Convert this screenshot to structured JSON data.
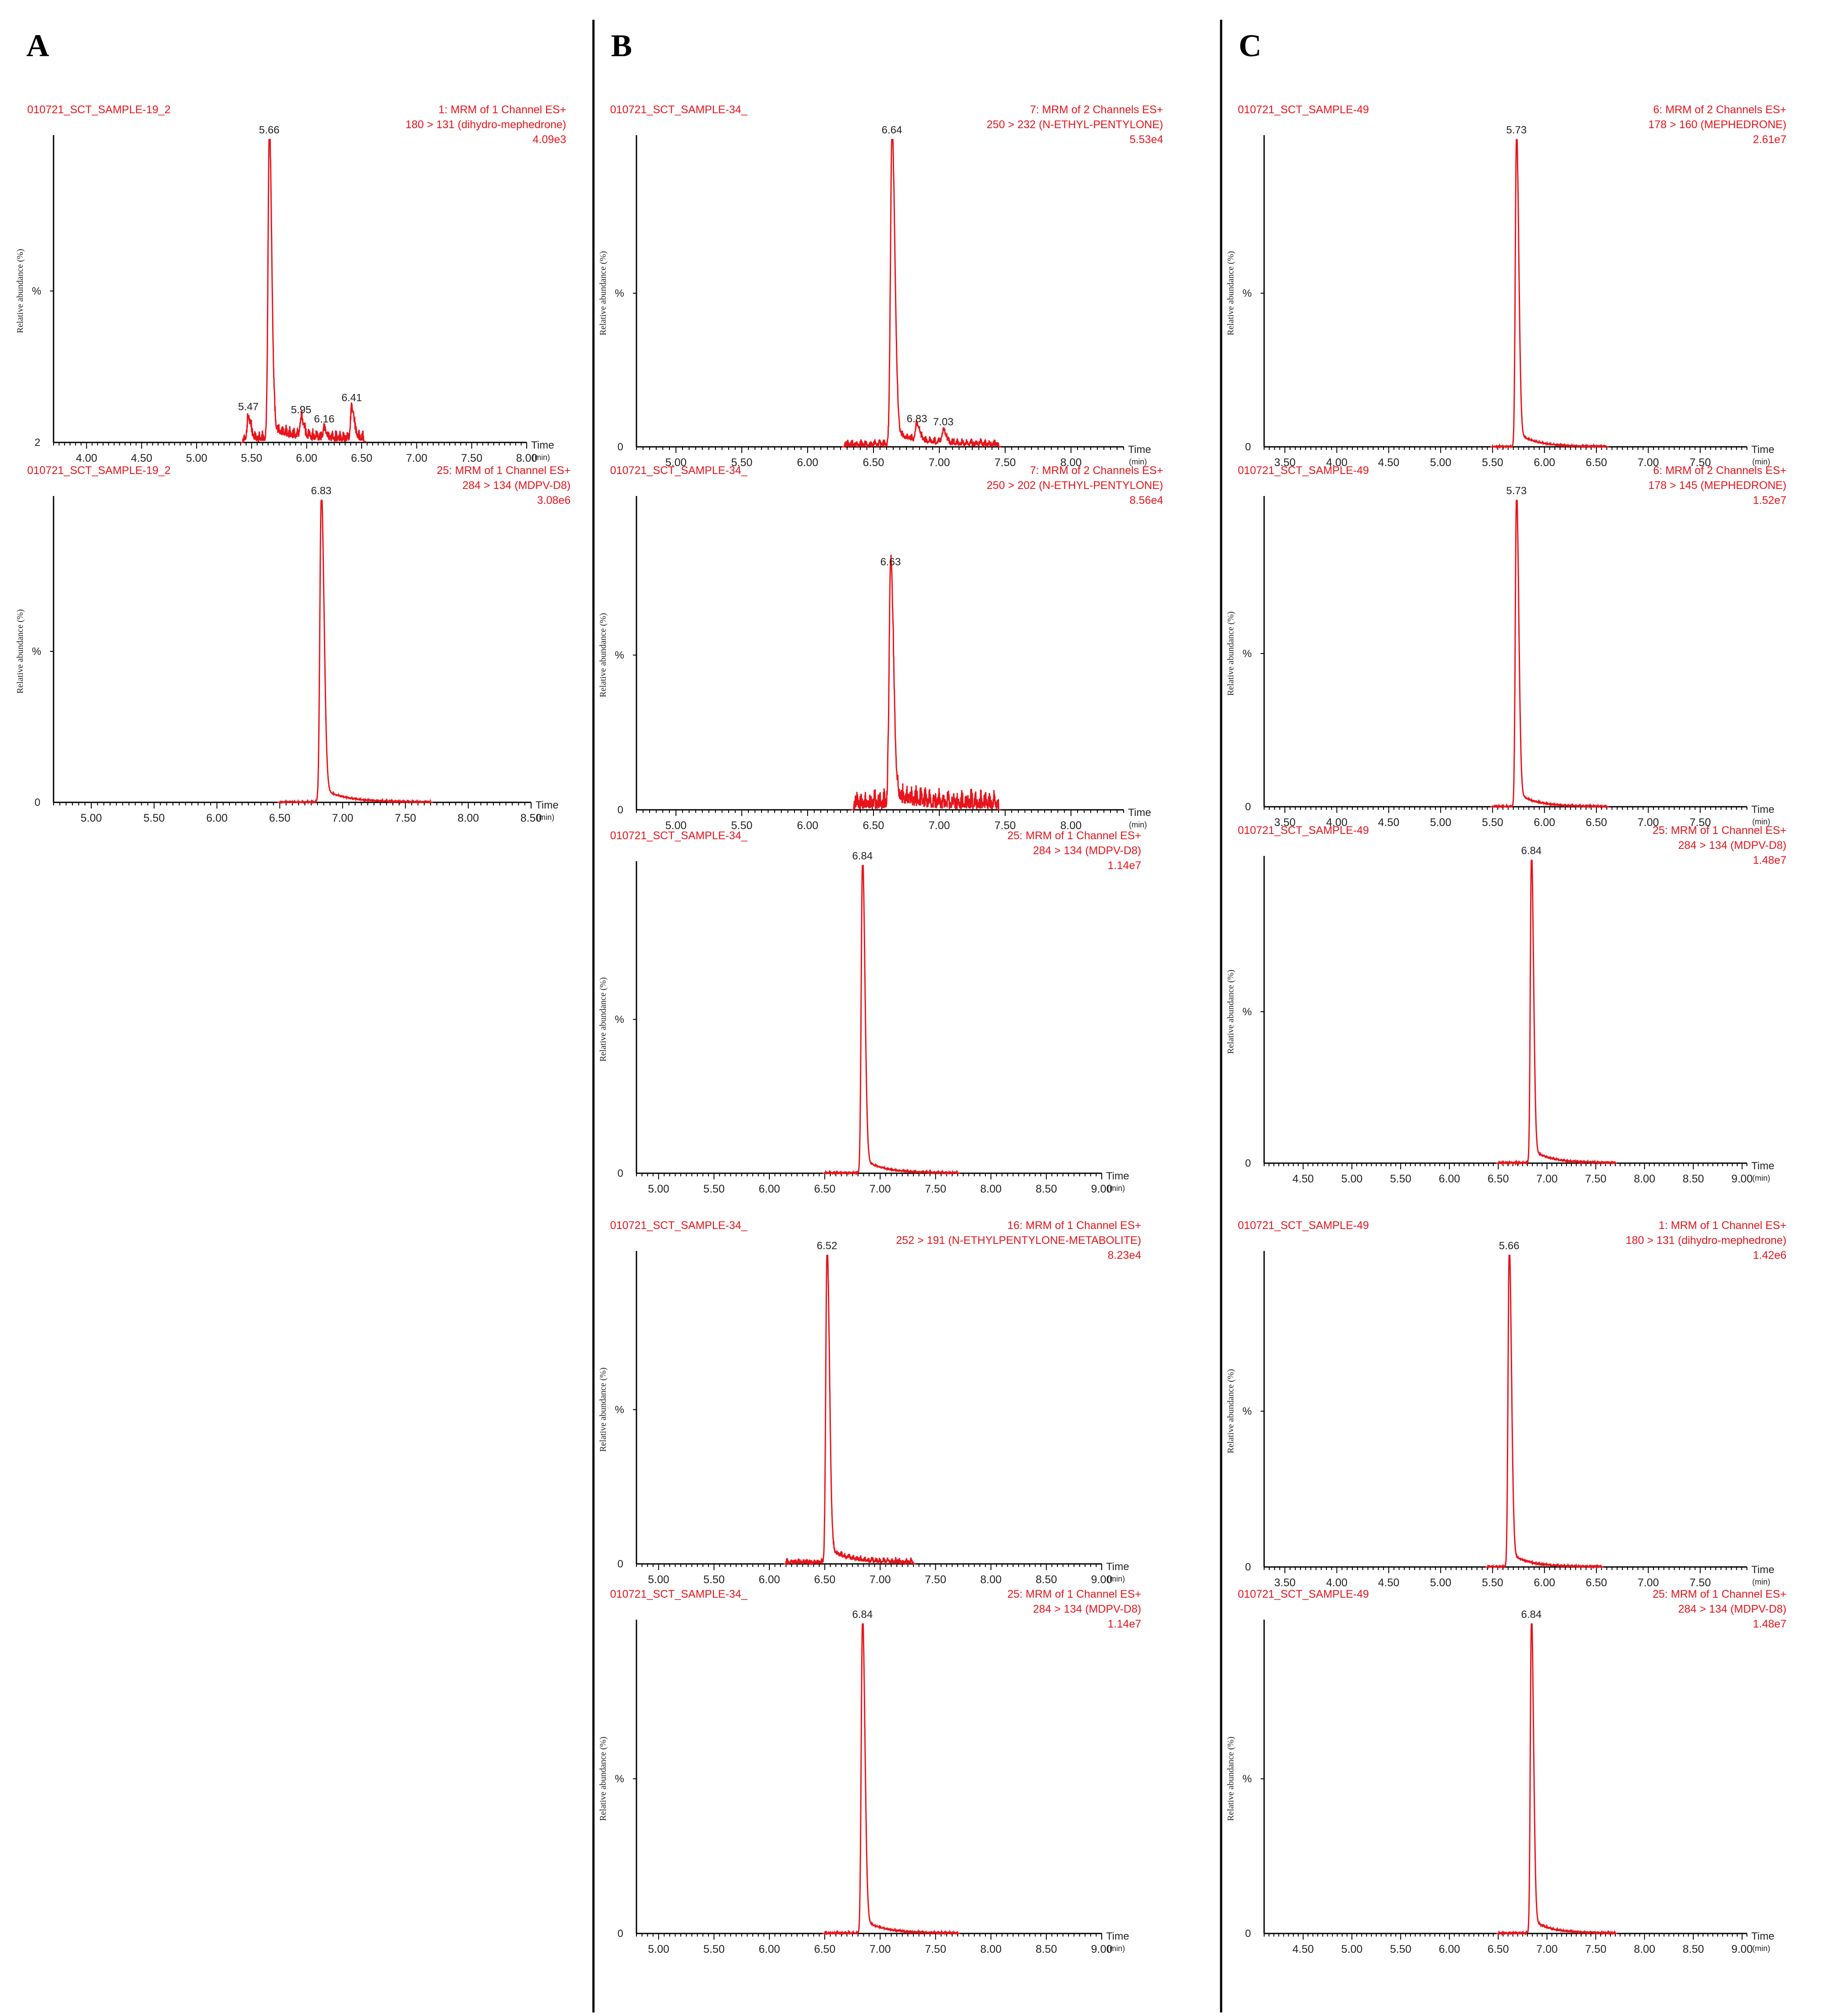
{
  "panels": [
    {
      "letter": "A"
    },
    {
      "letter": "B"
    },
    {
      "letter": "C"
    }
  ],
  "style": {
    "trace_color": "#e8141b",
    "axis_color": "#000000",
    "label_color": "#222222"
  },
  "chart_data": [
    {
      "type": "line",
      "panel": "A",
      "sample": "010721_SCT_SAMPLE-19_2",
      "function": "1: MRM of 1 Channel ES+",
      "transition": "180 > 131 (dihydro-mephedrone)",
      "intensity": "4.09e3",
      "ylabel": "Relative abundance (%)",
      "ymid": "%",
      "ybase": "2",
      "xlabel": "Time",
      "xunit": "(min)",
      "xlim": [
        3.7,
        8.0
      ],
      "xticks": [
        "4.00",
        "4.50",
        "5.00",
        "5.50",
        "6.00",
        "6.50",
        "7.00",
        "7.50",
        "8.00"
      ],
      "peaks": [
        {
          "x": 5.66,
          "h": 100,
          "label": "5.66"
        },
        {
          "x": 5.47,
          "h": 7,
          "label": "5.47"
        },
        {
          "x": 5.95,
          "h": 6,
          "label": "5.95"
        },
        {
          "x": 6.16,
          "h": 3,
          "label": "6.16"
        },
        {
          "x": 6.41,
          "h": 10,
          "label": "6.41"
        }
      ],
      "xrange": [
        5.42,
        6.52
      ],
      "noise": 0.04
    },
    {
      "type": "line",
      "panel": "A",
      "sample": "010721_SCT_SAMPLE-19_2",
      "function": "25: MRM of 1 Channel ES+",
      "transition": "284 > 134 (MDPV-D8)",
      "intensity": "3.08e6",
      "ylabel": "Relative abundance (%)",
      "ymid": "%",
      "ybase": "0",
      "xlabel": "Time",
      "xunit": "(min)",
      "xlim": [
        4.7,
        8.5
      ],
      "xticks": [
        "5.00",
        "5.50",
        "6.00",
        "6.50",
        "7.00",
        "7.50",
        "8.00",
        "8.50"
      ],
      "peaks": [
        {
          "x": 6.83,
          "h": 100,
          "label": "6.83"
        }
      ],
      "xrange": [
        6.5,
        7.7
      ],
      "noise": 0.005
    },
    {
      "type": "line",
      "panel": "B",
      "sample": "010721_SCT_SAMPLE-34_",
      "function": "7: MRM of 2 Channels ES+",
      "transition": "250 > 232 (N-ETHYL-PENTYLONE)",
      "intensity": "5.53e4",
      "ylabel": "Relative abundance (%)",
      "ymid": "%",
      "ybase": "0",
      "xlabel": "Time",
      "xunit": "(min)",
      "xlim": [
        4.7,
        8.4
      ],
      "xticks": [
        "5.00",
        "5.50",
        "6.00",
        "6.50",
        "7.00",
        "7.50",
        "8.00"
      ],
      "peaks": [
        {
          "x": 6.64,
          "h": 100,
          "label": "6.64"
        },
        {
          "x": 6.83,
          "h": 5,
          "label": "6.83"
        },
        {
          "x": 7.03,
          "h": 4,
          "label": "7.03"
        }
      ],
      "xrange": [
        6.28,
        7.45
      ],
      "noise": 0.025
    },
    {
      "type": "line",
      "panel": "B",
      "sample": "010721_SCT_SAMPLE-34_",
      "function": "7: MRM of 2 Channels ES+",
      "transition": "250 > 202 (N-ETHYL-PENTYLONE)",
      "intensity": "8.56e4",
      "ylabel": "Relative abundance (%)",
      "ymid": "%",
      "ybase": "0",
      "xlabel": "Time",
      "xunit": "(min)",
      "xlim": [
        4.7,
        8.4
      ],
      "xticks": [
        "5.00",
        "5.50",
        "6.00",
        "6.50",
        "7.00",
        "7.50",
        "8.00"
      ],
      "peaks": [
        {
          "x": 6.63,
          "h": 77,
          "label": "6.63"
        }
      ],
      "xrange": [
        6.35,
        7.45
      ],
      "noise": 0.07
    },
    {
      "type": "line",
      "panel": "B",
      "sample": "010721_SCT_SAMPLE-34_",
      "function": "25: MRM of 1 Channel ES+",
      "transition": "284 > 134 (MDPV-D8)",
      "intensity": "1.14e7",
      "ylabel": "Relative abundance (%)",
      "ymid": "%",
      "ybase": "0",
      "xlabel": "Time",
      "xunit": "(min)",
      "xlim": [
        4.8,
        9.0
      ],
      "xticks": [
        "5.00",
        "5.50",
        "6.00",
        "6.50",
        "7.00",
        "7.50",
        "8.00",
        "8.50",
        "9.00"
      ],
      "peaks": [
        {
          "x": 6.84,
          "h": 100,
          "label": "6.84"
        }
      ],
      "xrange": [
        6.5,
        7.7
      ],
      "noise": 0.005
    },
    {
      "type": "line",
      "panel": "B",
      "sample": "010721_SCT_SAMPLE-34_",
      "function": "16: MRM of 1 Channel ES+",
      "transition": "252 > 191 (N-ETHYLPENTYLONE-METABOLITE)",
      "intensity": "8.23e4",
      "ylabel": "Relative abundance (%)",
      "ymid": "%",
      "ybase": "0",
      "xlabel": "Time",
      "xunit": "(min)",
      "xlim": [
        4.8,
        9.0
      ],
      "xticks": [
        "5.00",
        "5.50",
        "6.00",
        "6.50",
        "7.00",
        "7.50",
        "8.00",
        "8.50",
        "9.00"
      ],
      "peaks": [
        {
          "x": 6.52,
          "h": 100,
          "label": "6.52"
        }
      ],
      "xrange": [
        6.15,
        7.3
      ],
      "noise": 0.02
    },
    {
      "type": "line",
      "panel": "B",
      "sample": "010721_SCT_SAMPLE-34_",
      "function": "25: MRM of 1 Channel ES+",
      "transition": "284 > 134 (MDPV-D8)",
      "intensity": "1.14e7",
      "ylabel": "Relative abundance (%)",
      "ymid": "%",
      "ybase": "0",
      "xlabel": "Time",
      "xunit": "(min)",
      "xlim": [
        4.8,
        9.0
      ],
      "xticks": [
        "5.00",
        "5.50",
        "6.00",
        "6.50",
        "7.00",
        "7.50",
        "8.00",
        "8.50",
        "9.00"
      ],
      "peaks": [
        {
          "x": 6.84,
          "h": 100,
          "label": "6.84"
        }
      ],
      "xrange": [
        6.5,
        7.7
      ],
      "noise": 0.005
    },
    {
      "type": "line",
      "panel": "C",
      "sample": "010721_SCT_SAMPLE-49",
      "function": "6: MRM of 2 Channels ES+",
      "transition": "178 > 160 (MEPHEDRONE)",
      "intensity": "2.61e7",
      "ylabel": "Relative abundance (%)",
      "ymid": "%",
      "ybase": "0",
      "xlabel": "Time",
      "xunit": "(min)",
      "xlim": [
        3.3,
        7.95
      ],
      "xticks": [
        "3.50",
        "4.00",
        "4.50",
        "5.00",
        "5.50",
        "6.00",
        "6.50",
        "7.00",
        "7.50"
      ],
      "peaks": [
        {
          "x": 5.73,
          "h": 100,
          "label": "5.73"
        }
      ],
      "xrange": [
        5.5,
        6.6
      ],
      "noise": 0.004
    },
    {
      "type": "line",
      "panel": "C",
      "sample": "010721_SCT_SAMPLE-49",
      "function": "6: MRM of 2 Channels ES+",
      "transition": "178 > 145 (MEPHEDRONE)",
      "intensity": "1.52e7",
      "ylabel": "Relative abundance (%)",
      "ymid": "%",
      "ybase": "0",
      "xlabel": "Time",
      "xunit": "(min)",
      "xlim": [
        3.3,
        7.95
      ],
      "xticks": [
        "3.50",
        "4.00",
        "4.50",
        "5.00",
        "5.50",
        "6.00",
        "6.50",
        "7.00",
        "7.50"
      ],
      "peaks": [
        {
          "x": 5.73,
          "h": 100,
          "label": "5.73"
        }
      ],
      "xrange": [
        5.5,
        6.6
      ],
      "noise": 0.004
    },
    {
      "type": "line",
      "panel": "C",
      "sample": "010721_SCT_SAMPLE-49",
      "function": "25: MRM of 1 Channel ES+",
      "transition": "284 > 134 (MDPV-D8)",
      "intensity": "1.48e7",
      "ylabel": "Relative abundance (%)",
      "ymid": "%",
      "ybase": "0",
      "xlabel": "Time",
      "xunit": "(min)",
      "xlim": [
        4.1,
        9.05
      ],
      "xticks": [
        "4.50",
        "5.00",
        "5.50",
        "6.00",
        "6.50",
        "7.00",
        "7.50",
        "8.00",
        "8.50",
        "9.00"
      ],
      "peaks": [
        {
          "x": 6.84,
          "h": 100,
          "label": "6.84"
        }
      ],
      "xrange": [
        6.5,
        7.7
      ],
      "noise": 0.005
    },
    {
      "type": "line",
      "panel": "C",
      "sample": "010721_SCT_SAMPLE-49",
      "function": "1: MRM of 1 Channel ES+",
      "transition": "180 > 131 (dihydro-mephedrone)",
      "intensity": "1.42e6",
      "ylabel": "Relative abundance (%)",
      "ymid": "%",
      "ybase": "0",
      "xlabel": "Time",
      "xunit": "(min)",
      "xlim": [
        3.3,
        7.95
      ],
      "xticks": [
        "3.50",
        "4.00",
        "4.50",
        "5.00",
        "5.50",
        "6.00",
        "6.50",
        "7.00",
        "7.50"
      ],
      "peaks": [
        {
          "x": 5.66,
          "h": 100,
          "label": "5.66"
        }
      ],
      "xrange": [
        5.45,
        6.55
      ],
      "noise": 0.004
    },
    {
      "type": "line",
      "panel": "C",
      "sample": "010721_SCT_SAMPLE-49",
      "function": "25: MRM of 1 Channel ES+",
      "transition": "284 > 134 (MDPV-D8)",
      "intensity": "1.48e7",
      "ylabel": "Relative abundance (%)",
      "ymid": "%",
      "ybase": "0",
      "xlabel": "Time",
      "xunit": "(min)",
      "xlim": [
        4.1,
        9.05
      ],
      "xticks": [
        "4.50",
        "5.00",
        "5.50",
        "6.00",
        "6.50",
        "7.00",
        "7.50",
        "8.00",
        "8.50",
        "9.00"
      ],
      "peaks": [
        {
          "x": 6.84,
          "h": 100,
          "label": "6.84"
        }
      ],
      "xrange": [
        6.5,
        7.7
      ],
      "noise": 0.005
    }
  ]
}
